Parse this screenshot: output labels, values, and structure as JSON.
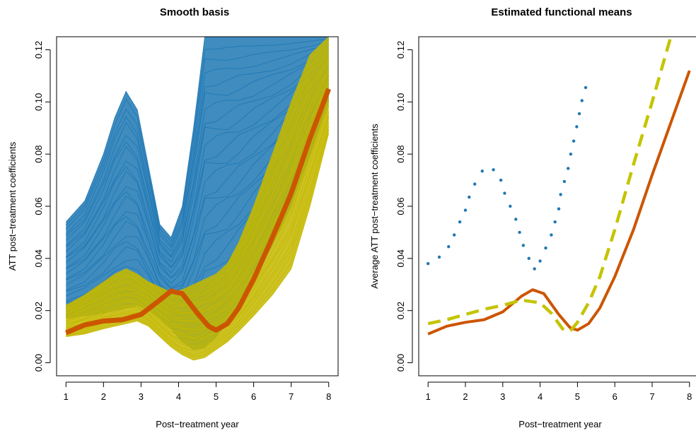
{
  "chart_data": [
    {
      "type": "line",
      "title": "Smooth basis",
      "xlabel": "Post−treatment year",
      "ylabel": "ATT post−treatment coefficients",
      "xlim": [
        0.75,
        8.25
      ],
      "ylim": [
        -0.005,
        0.125
      ],
      "x_ticks": [
        1,
        2,
        3,
        4,
        5,
        6,
        7,
        8
      ],
      "y_ticks": [
        "0.00",
        "0.02",
        "0.04",
        "0.06",
        "0.08",
        "0.10",
        "0.12"
      ],
      "grid": false,
      "bands": [
        {
          "color": "#1f78b4",
          "x": [
            1,
            1.5,
            2,
            2.3,
            2.6,
            2.9,
            3.2,
            3.5,
            3.8,
            4.1,
            4.4,
            4.7,
            5.0,
            5.3,
            5.6,
            6.0,
            6.5,
            7.0,
            7.5,
            8.0
          ],
          "lower": [
            0.017,
            0.018,
            0.019,
            0.02,
            0.021,
            0.022,
            0.02,
            0.017,
            0.013,
            0.008,
            0.005,
            0.006,
            0.01,
            0.015,
            0.022,
            0.032,
            0.045,
            0.06,
            0.08,
            0.1
          ],
          "upper": [
            0.054,
            0.062,
            0.08,
            0.094,
            0.104,
            0.097,
            0.075,
            0.053,
            0.048,
            0.06,
            0.09,
            0.125,
            0.125,
            0.125,
            0.125,
            0.125,
            0.125,
            0.125,
            0.125,
            0.125
          ]
        },
        {
          "color": "#c4b800",
          "x": [
            1,
            1.5,
            2,
            2.3,
            2.6,
            2.9,
            3.2,
            3.5,
            3.8,
            4.1,
            4.4,
            4.7,
            5.0,
            5.3,
            5.6,
            6.0,
            6.5,
            7.0,
            7.5,
            8.0
          ],
          "lower": [
            0.01,
            0.011,
            0.013,
            0.014,
            0.015,
            0.016,
            0.014,
            0.01,
            0.006,
            0.003,
            0.001,
            0.002,
            0.005,
            0.008,
            0.012,
            0.018,
            0.026,
            0.036,
            0.06,
            0.088
          ],
          "upper": [
            0.022,
            0.026,
            0.031,
            0.034,
            0.036,
            0.034,
            0.031,
            0.029,
            0.027,
            0.028,
            0.03,
            0.032,
            0.034,
            0.038,
            0.046,
            0.06,
            0.08,
            0.1,
            0.118,
            0.125
          ]
        }
      ],
      "series": [
        {
          "color": "#cc5500",
          "style": "solid",
          "x": [
            1,
            1.5,
            2,
            2.5,
            3,
            3.5,
            3.8,
            4.1,
            4.5,
            4.8,
            5.0,
            5.3,
            5.6,
            6.0,
            6.5,
            7.0,
            7.5,
            8.0
          ],
          "y": [
            0.0115,
            0.0145,
            0.016,
            0.0165,
            0.0185,
            0.024,
            0.0275,
            0.0265,
            0.019,
            0.014,
            0.0125,
            0.015,
            0.021,
            0.032,
            0.048,
            0.065,
            0.086,
            0.105
          ]
        }
      ]
    },
    {
      "type": "line",
      "title": "Estimated functional means",
      "xlabel": "Post−treatment year",
      "ylabel": "Average ATT post−treatment coefficients",
      "xlim": [
        0.75,
        8.25
      ],
      "ylim": [
        -0.005,
        0.125
      ],
      "x_ticks": [
        1,
        2,
        3,
        4,
        5,
        6,
        7,
        8
      ],
      "y_ticks": [
        "0.00",
        "0.02",
        "0.04",
        "0.06",
        "0.08",
        "0.10",
        "0.12"
      ],
      "grid": false,
      "series": [
        {
          "color": "#1f78b4",
          "style": "dotted",
          "x": [
            1.0,
            1.3,
            1.55,
            1.7,
            1.85,
            2.0,
            2.1,
            2.25,
            2.45,
            2.75,
            2.95,
            3.05,
            3.2,
            3.35,
            3.45,
            3.55,
            3.7,
            3.85,
            4.0,
            4.15,
            4.3,
            4.4,
            4.5,
            4.55,
            4.65,
            4.75,
            4.82,
            4.9,
            4.98,
            5.05,
            5.12,
            5.22
          ],
          "y": [
            0.038,
            0.0405,
            0.0445,
            0.049,
            0.054,
            0.0585,
            0.0635,
            0.0685,
            0.0735,
            0.074,
            0.07,
            0.065,
            0.06,
            0.055,
            0.05,
            0.045,
            0.04,
            0.036,
            0.039,
            0.044,
            0.049,
            0.054,
            0.059,
            0.0645,
            0.0695,
            0.0745,
            0.08,
            0.085,
            0.0905,
            0.0955,
            0.1005,
            0.1055
          ]
        },
        {
          "color": "#cc5500",
          "style": "solid",
          "x": [
            1,
            1.5,
            2,
            2.5,
            3,
            3.5,
            3.8,
            4.1,
            4.5,
            4.8,
            5.0,
            5.3,
            5.6,
            6.0,
            6.5,
            7.0,
            7.5,
            8.0
          ],
          "y": [
            0.011,
            0.014,
            0.0155,
            0.0165,
            0.0195,
            0.0255,
            0.028,
            0.0265,
            0.0185,
            0.0135,
            0.0125,
            0.015,
            0.021,
            0.033,
            0.051,
            0.072,
            0.092,
            0.112
          ]
        },
        {
          "color": "#c4c400",
          "style": "dashed",
          "x": [
            1,
            1.5,
            2,
            2.5,
            3,
            3.5,
            4.0,
            4.3,
            4.6,
            4.8,
            5.0,
            5.3,
            5.6,
            6.0,
            6.5,
            7.0,
            7.5
          ],
          "y": [
            0.015,
            0.0165,
            0.0185,
            0.0205,
            0.022,
            0.024,
            0.023,
            0.019,
            0.013,
            0.012,
            0.0155,
            0.023,
            0.033,
            0.051,
            0.076,
            0.1,
            0.125
          ]
        }
      ]
    }
  ]
}
